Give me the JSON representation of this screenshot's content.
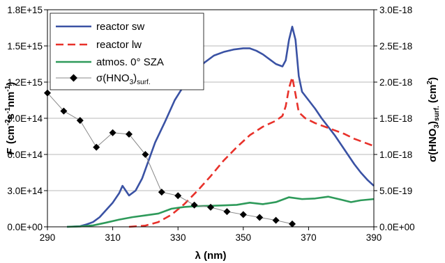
{
  "chart_data": {
    "type": "line",
    "xlabel": "λ (nm)",
    "ylabel_left": {
      "main": "F",
      "rest": "(cm",
      "sup1": "-2",
      "s": "s",
      "sup2": "-1",
      "nm": "nm",
      "sup3": "-1",
      "close": ")"
    },
    "ylabel_right": {
      "open": "σ(HNO",
      "sub3": "3",
      "close1": ")",
      "subsurf": "surf.",
      "space": " (cm",
      "sup2": "2",
      "close2": ")"
    },
    "x_ticks": [
      290,
      310,
      330,
      350,
      370,
      390
    ],
    "x_tick_labels": [
      "290",
      "310",
      "330",
      "350",
      "370",
      "390"
    ],
    "xlim": [
      290,
      390
    ],
    "y_left_ticks": [
      0,
      300000000000000.0,
      600000000000000.0,
      900000000000000.0,
      1200000000000000.0,
      1500000000000000.0,
      1800000000000000.0
    ],
    "y_left_tick_labels": [
      "0.0E+00",
      "3.0E+14",
      "6.0E+14",
      "9.0E+14",
      "1.2E+15",
      "1.5E+15",
      "1.8E+15"
    ],
    "y_left_lim": [
      0,
      1800000000000000.0
    ],
    "y_right_ticks": [
      0,
      5e-19,
      1e-18,
      1.5e-18,
      2e-18,
      2.5e-18,
      3e-18
    ],
    "y_right_tick_labels": [
      "0.0E+00",
      "5.0E-19",
      "1.0E-18",
      "1.5E-18",
      "2.0E-18",
      "2.5E-18",
      "3.0E-18"
    ],
    "y_right_lim": [
      0,
      3e-18
    ],
    "grid": "horizontal",
    "legend_position": "top-left",
    "series": [
      {
        "name": "reactor sw",
        "axis": "left",
        "color": "#3a52a4",
        "style": "solid",
        "points": [
          [
            296,
            0
          ],
          [
            300,
            5000000000000.0
          ],
          [
            302,
            20000000000000.0
          ],
          [
            304,
            40000000000000.0
          ],
          [
            306,
            80000000000000.0
          ],
          [
            308,
            140000000000000.0
          ],
          [
            310,
            200000000000000.0
          ],
          [
            312,
            280000000000000.0
          ],
          [
            313,
            340000000000000.0
          ],
          [
            314,
            300000000000000.0
          ],
          [
            315,
            260000000000000.0
          ],
          [
            317,
            300000000000000.0
          ],
          [
            319,
            400000000000000.0
          ],
          [
            321,
            550000000000000.0
          ],
          [
            323,
            700000000000000.0
          ],
          [
            326,
            870000000000000.0
          ],
          [
            329,
            1050000000000000.0
          ],
          [
            332,
            1180000000000000.0
          ],
          [
            335,
            1270000000000000.0
          ],
          [
            338,
            1360000000000000.0
          ],
          [
            341,
            1420000000000000.0
          ],
          [
            344,
            1450000000000000.0
          ],
          [
            347,
            1470000000000000.0
          ],
          [
            350,
            1480000000000000.0
          ],
          [
            352,
            1480000000000000.0
          ],
          [
            354,
            1460000000000000.0
          ],
          [
            356,
            1430000000000000.0
          ],
          [
            358,
            1390000000000000.0
          ],
          [
            360,
            1350000000000000.0
          ],
          [
            362,
            1330000000000000.0
          ],
          [
            363,
            1380000000000000.0
          ],
          [
            364,
            1550000000000000.0
          ],
          [
            365,
            1660000000000000.0
          ],
          [
            366,
            1550000000000000.0
          ],
          [
            367,
            1250000000000000.0
          ],
          [
            368,
            1120000000000000.0
          ],
          [
            370,
            1050000000000000.0
          ],
          [
            372,
            980000000000000.0
          ],
          [
            374,
            900000000000000.0
          ],
          [
            376,
            830000000000000.0
          ],
          [
            378,
            760000000000000.0
          ],
          [
            380,
            680000000000000.0
          ],
          [
            382,
            600000000000000.0
          ],
          [
            384,
            520000000000000.0
          ],
          [
            386,
            450000000000000.0
          ],
          [
            388,
            390000000000000.0
          ],
          [
            390,
            340000000000000.0
          ]
        ]
      },
      {
        "name": "reactor lw",
        "axis": "left",
        "color": "#e8312a",
        "style": "dashed",
        "points": [
          [
            315,
            0
          ],
          [
            320,
            10000000000000.0
          ],
          [
            324,
            40000000000000.0
          ],
          [
            328,
            100000000000000.0
          ],
          [
            332,
            190000000000000.0
          ],
          [
            336,
            300000000000000.0
          ],
          [
            340,
            420000000000000.0
          ],
          [
            344,
            550000000000000.0
          ],
          [
            348,
            660000000000000.0
          ],
          [
            352,
            760000000000000.0
          ],
          [
            356,
            830000000000000.0
          ],
          [
            360,
            880000000000000.0
          ],
          [
            362,
            920000000000000.0
          ],
          [
            363,
            1000000000000000.0
          ],
          [
            364,
            1150000000000000.0
          ],
          [
            365,
            1240000000000000.0
          ],
          [
            366,
            1100000000000000.0
          ],
          [
            367,
            950000000000000.0
          ],
          [
            369,
            900000000000000.0
          ],
          [
            372,
            860000000000000.0
          ],
          [
            375,
            830000000000000.0
          ],
          [
            378,
            800000000000000.0
          ],
          [
            381,
            770000000000000.0
          ],
          [
            384,
            730000000000000.0
          ],
          [
            387,
            700000000000000.0
          ],
          [
            390,
            670000000000000.0
          ]
        ]
      },
      {
        "name": "atmos. 0° SZA",
        "axis": "left",
        "color": "#2e9a5a",
        "style": "solid",
        "points": [
          [
            296,
            0
          ],
          [
            300,
            3000000000000.0
          ],
          [
            304,
            12000000000000.0
          ],
          [
            308,
            35000000000000.0
          ],
          [
            312,
            60000000000000.0
          ],
          [
            316,
            80000000000000.0
          ],
          [
            320,
            95000000000000.0
          ],
          [
            324,
            110000000000000.0
          ],
          [
            328,
            150000000000000.0
          ],
          [
            332,
            165000000000000.0
          ],
          [
            336,
            172000000000000.0
          ],
          [
            340,
            174000000000000.0
          ],
          [
            344,
            178000000000000.0
          ],
          [
            348,
            182000000000000.0
          ],
          [
            352,
            200000000000000.0
          ],
          [
            356,
            188000000000000.0
          ],
          [
            360,
            205000000000000.0
          ],
          [
            364,
            245000000000000.0
          ],
          [
            368,
            230000000000000.0
          ],
          [
            372,
            235000000000000.0
          ],
          [
            376,
            250000000000000.0
          ],
          [
            380,
            225000000000000.0
          ],
          [
            383,
            205000000000000.0
          ],
          [
            386,
            220000000000000.0
          ],
          [
            390,
            230000000000000.0
          ]
        ]
      },
      {
        "name": "σ(HNO",
        "name_sub": "3",
        "name_close": ")",
        "name_sub2": "surf.",
        "axis": "right",
        "color": "#000000",
        "line_color": "#888888",
        "style": "marker-line",
        "marker": "diamond",
        "points": [
          [
            290,
            1.85e-18
          ],
          [
            295,
            1.6e-18
          ],
          [
            300,
            1.47e-18
          ],
          [
            305,
            1.1e-18
          ],
          [
            310,
            1.3e-18
          ],
          [
            315,
            1.28e-18
          ],
          [
            320,
            1e-18
          ],
          [
            325,
            4.8e-19
          ],
          [
            330,
            4.3e-19
          ],
          [
            335,
            3e-19
          ],
          [
            340,
            2.7e-19
          ],
          [
            345,
            2.1e-19
          ],
          [
            350,
            1.7e-19
          ],
          [
            355,
            1.3e-19
          ],
          [
            360,
            9e-20
          ],
          [
            365,
            4e-20
          ]
        ]
      }
    ]
  }
}
